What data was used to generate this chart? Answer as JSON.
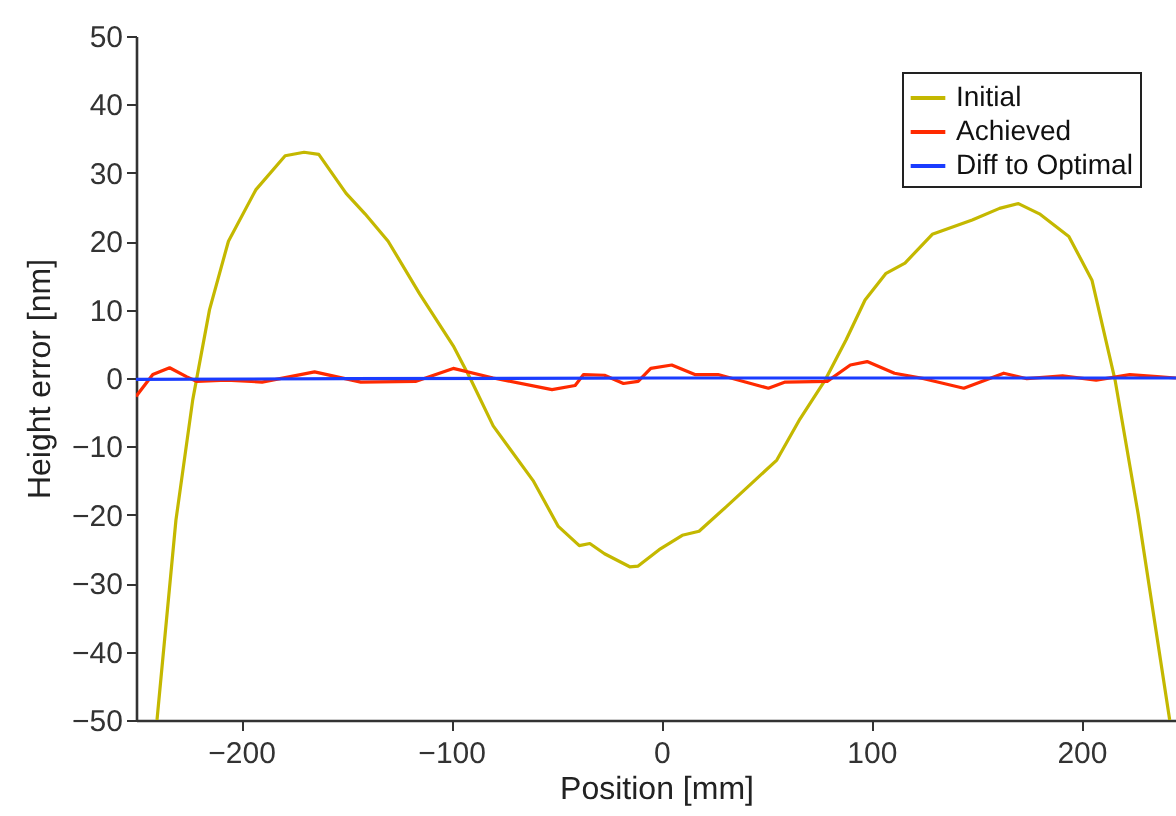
{
  "chart_data": {
    "type": "line",
    "xlabel": "Position [mm]",
    "ylabel": "Height error [nm]",
    "xlim": [
      -250,
      245
    ],
    "xticks": [
      -200,
      -100,
      0,
      100,
      200
    ],
    "ylim": [
      -50,
      50
    ],
    "yticks": [
      -50,
      -40,
      -30,
      -20,
      -10,
      0,
      10,
      20,
      30,
      40,
      50
    ],
    "grid": false,
    "legend": "top right",
    "series": [
      {
        "name": "Initial",
        "color": "#c4b800",
        "x": [
          -240,
          -231,
          -223,
          -215,
          -206,
          -193,
          -179,
          -170,
          -163,
          -150,
          -141,
          -130,
          -115,
          -99,
          -91,
          -80,
          -61,
          -49,
          -39,
          -34,
          -27,
          -15,
          -11,
          -1,
          10,
          18,
          31,
          43,
          55,
          66,
          78,
          88,
          97,
          107,
          116,
          129,
          148,
          161,
          170,
          180,
          194,
          205,
          216,
          227,
          242
        ],
        "values": [
          -50,
          -20.8,
          -3.2,
          10,
          20,
          27.5,
          32.5,
          33,
          32.7,
          27,
          24,
          20,
          12.3,
          4.7,
          0,
          -7,
          -15,
          -21.7,
          -24.5,
          -24.2,
          -25.7,
          -27.6,
          -27.5,
          -25.1,
          -23,
          -22.4,
          -18.8,
          -15.4,
          -12,
          -6,
          -0.3,
          5.6,
          11.4,
          15.3,
          16.8,
          21,
          23.1,
          24.8,
          25.5,
          24,
          20.7,
          14.3,
          -0.3,
          -19.9,
          -50
        ]
      },
      {
        "name": "Achieved",
        "color": "#ff2a00",
        "x": [
          -250,
          -242,
          -234,
          -226,
          -221,
          -207,
          -190,
          -165,
          -143,
          -117,
          -99,
          -80,
          -52,
          -41,
          -37,
          -27,
          -18,
          -11,
          -5,
          5,
          16,
          27,
          51,
          59,
          79,
          90,
          98,
          111,
          125,
          144,
          163,
          174,
          191,
          207,
          223,
          236,
          245
        ],
        "values": [
          -2.7,
          0.5,
          1.5,
          0.2,
          -0.5,
          -0.3,
          -0.6,
          0.9,
          -0.6,
          -0.5,
          1.4,
          0,
          -1.7,
          -1.1,
          0.5,
          0.4,
          -0.8,
          -0.5,
          1.4,
          1.9,
          0.5,
          0.5,
          -1.5,
          -0.6,
          -0.5,
          1.9,
          2.4,
          0.7,
          -0.1,
          -1.5,
          0.7,
          -0.1,
          0.3,
          -0.3,
          0.5,
          0.2,
          0
        ]
      },
      {
        "name": "Diff to Optimal",
        "color": "#1a3cff",
        "x": [
          -250,
          -150,
          0,
          150,
          245
        ],
        "values": [
          -0.2,
          -0.1,
          0,
          0,
          0
        ]
      }
    ]
  }
}
